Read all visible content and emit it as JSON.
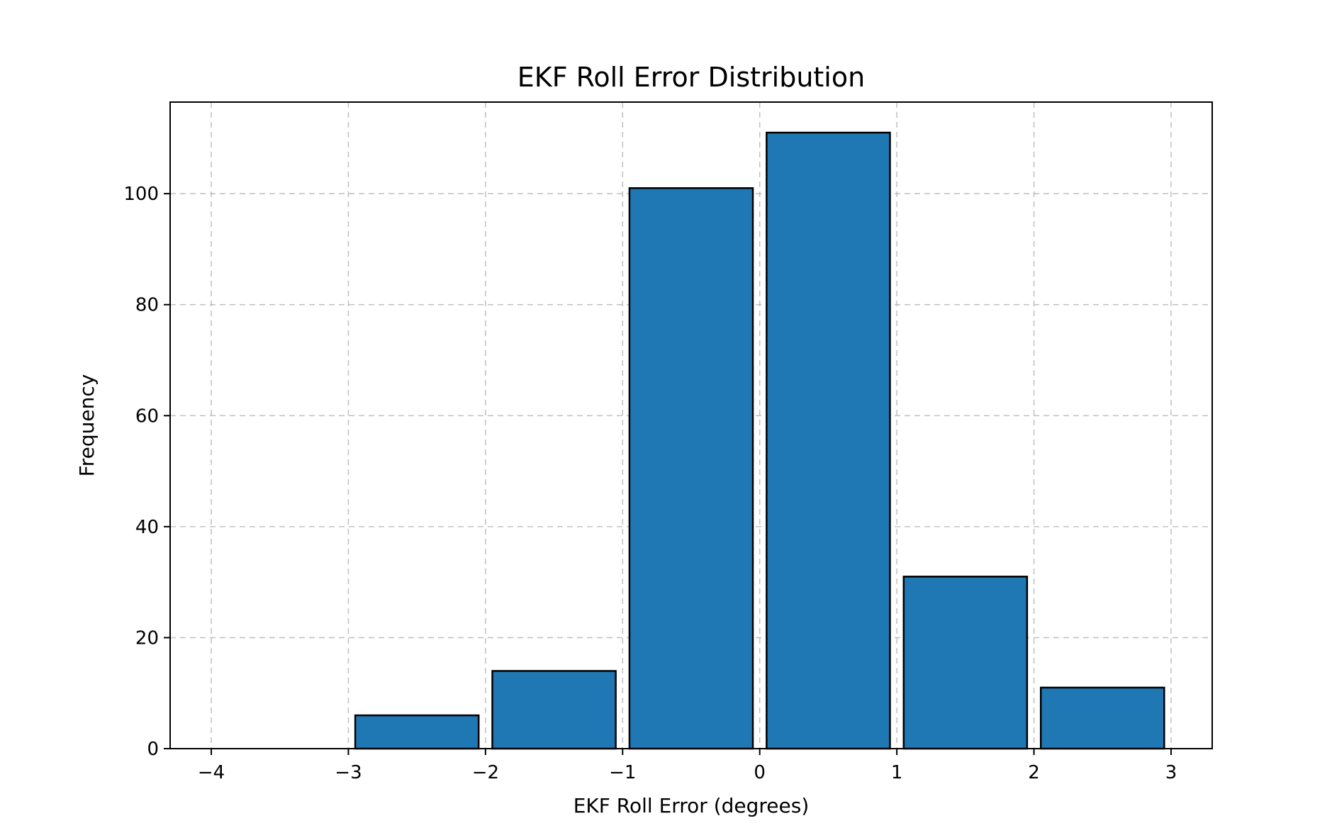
{
  "chart_data": {
    "type": "bar",
    "title": "EKF Roll Error Distribution",
    "xlabel": "EKF Roll Error (degrees)",
    "ylabel": "Frequency",
    "bins": [
      {
        "start": -4,
        "end": -3,
        "value": 0
      },
      {
        "start": -3,
        "end": -2,
        "value": 6
      },
      {
        "start": -2,
        "end": -1,
        "value": 14
      },
      {
        "start": -1,
        "end": 0,
        "value": 101
      },
      {
        "start": 0,
        "end": 1,
        "value": 111
      },
      {
        "start": 1,
        "end": 2,
        "value": 31
      },
      {
        "start": 2,
        "end": 3,
        "value": 11
      }
    ],
    "xlim": [
      -4.3,
      3.3
    ],
    "ylim": [
      0,
      116.5
    ],
    "x_ticks": [
      -4,
      -3,
      -2,
      -1,
      0,
      1,
      2,
      3
    ],
    "x_tick_labels": [
      "−4",
      "−3",
      "−2",
      "−1",
      "0",
      "1",
      "2",
      "3"
    ],
    "y_ticks": [
      0,
      20,
      40,
      60,
      80,
      100
    ],
    "y_tick_labels": [
      "0",
      "20",
      "40",
      "60",
      "80",
      "100"
    ],
    "grid": true,
    "bar_color": "#1f77b4",
    "edge_color": "#000000"
  }
}
